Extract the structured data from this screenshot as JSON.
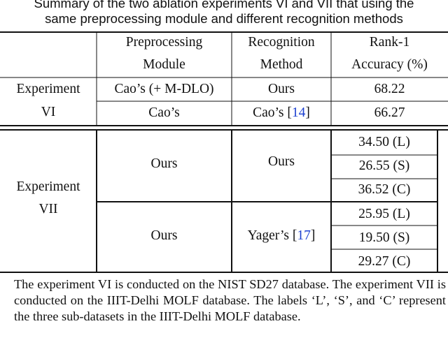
{
  "caption": [
    "Summary of the two ablation experiments VI and VII that using the",
    "same preprocessing module and different recognition methods"
  ],
  "table": {
    "header": [
      [
        "Preprocessing",
        "Module"
      ],
      [
        "Recognition",
        "Method"
      ],
      [
        "Rank-1",
        "Accuracy (%)"
      ]
    ],
    "experiment_vi": {
      "label": [
        "Experiment",
        "VI"
      ],
      "rows": [
        {
          "module": "Cao’s (+ M-DLO)",
          "method": [
            "Ours"
          ],
          "accuracy": "68.22"
        },
        {
          "module": "Cao’s",
          "method": [
            "Cao’s [",
            "14",
            "]"
          ],
          "accuracy": "66.27"
        }
      ]
    },
    "experiment_vii": {
      "label": [
        "Experiment",
        "VII"
      ],
      "groups": [
        {
          "module": "Ours",
          "method": [
            "Ours"
          ],
          "accuracy": [
            "34.50 (L)",
            "26.55 (S)",
            "36.52 (C)"
          ]
        },
        {
          "module": "Ours",
          "method": [
            "Yager’s [",
            "17",
            "]"
          ],
          "accuracy": [
            "25.95 (L)",
            "19.50 (S)",
            "29.27 (C)"
          ]
        }
      ]
    }
  },
  "footnote": "The experiment VI is conducted on the NIST SD27 database. The experiment VII is conducted on the IIIT-Delhi MOLF database. The labels ‘L’, ‘S’, and ‘C’ represent the three sub-datasets in the IIIT-Delhi MOLF database."
}
